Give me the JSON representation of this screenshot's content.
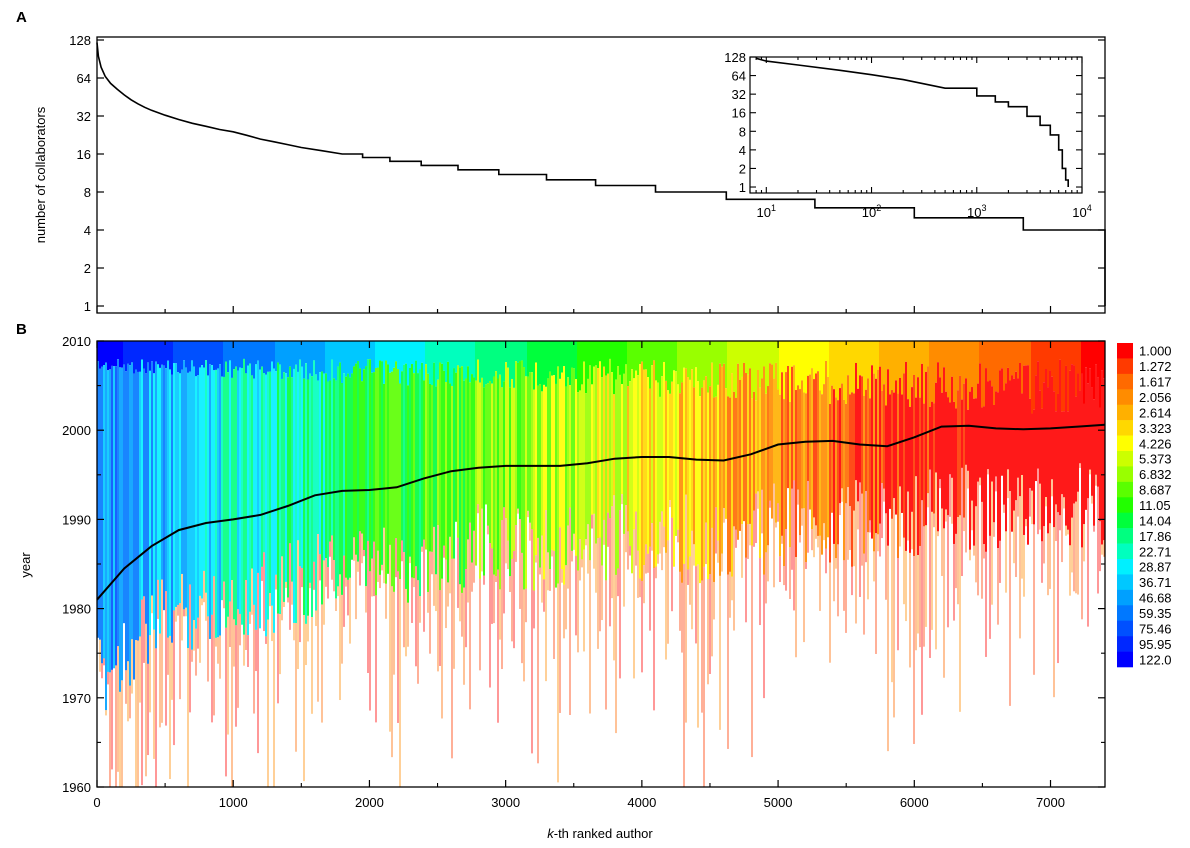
{
  "panel_labels": {
    "a": "A",
    "b": "B"
  },
  "chart_data": [
    {
      "type": "line",
      "panel": "A",
      "ylabel": "number of collaborators",
      "xlabel": "",
      "scale_y": "log2",
      "ylim": [
        1,
        128
      ],
      "xlim": [
        0,
        7400
      ],
      "y_ticks": [
        "1",
        "2",
        "4",
        "8",
        "16",
        "32",
        "64",
        "128"
      ],
      "series": [
        {
          "x": [
            0,
            10,
            30,
            60,
            100,
            150,
            200,
            250,
            300,
            350,
            400,
            500,
            600,
            700,
            800,
            900,
            1000,
            1100,
            1200,
            1300,
            1400,
            1500,
            1650,
            1800,
            1950,
            2150,
            2380,
            2650,
            2950,
            3300,
            3660,
            4100,
            4620,
            5270,
            6000,
            6800,
            7400
          ],
          "y": [
            122,
            95,
            78,
            66,
            58,
            52,
            47,
            43,
            40,
            37.5,
            35.5,
            32.5,
            30,
            28,
            26.5,
            25,
            24,
            22.5,
            21,
            20,
            19,
            18,
            17,
            16,
            15,
            14,
            13,
            12,
            11,
            10,
            9,
            8,
            7,
            6,
            5,
            4,
            1
          ]
        }
      ],
      "inset": {
        "type": "line",
        "scale_x": "log10",
        "scale_y": "log2",
        "xlim": [
          7,
          10000
        ],
        "ylim": [
          0.8,
          128
        ],
        "y_ticks": [
          "1",
          "2",
          "4",
          "8",
          "16",
          "32",
          "64",
          "128"
        ],
        "x_ticks": [
          "10",
          "10",
          "10",
          "10"
        ],
        "x_tick_exponents": [
          "1",
          "2",
          "3",
          "4"
        ],
        "series": [
          {
            "x": [
              8,
              10,
              20,
              50,
              100,
              200,
              500,
              1000,
              1500,
              2000,
              3000,
              4000,
              5000,
              6000,
              6500,
              7000,
              7400
            ],
            "y": [
              122,
              110,
              95,
              78,
              66,
              55,
              40,
              30,
              24,
              20,
              14,
              10,
              7,
              4,
              2,
              1.3,
              1
            ]
          }
        ]
      }
    },
    {
      "type": "heatmap",
      "panel": "B",
      "xlabel_italic": "k",
      "xlabel_rest": "-th ranked author",
      "ylabel": "year",
      "xlim": [
        0,
        7400
      ],
      "ylim": [
        1960,
        2010
      ],
      "x_ticks": [
        "0",
        "1000",
        "2000",
        "3000",
        "4000",
        "5000",
        "6000",
        "7000"
      ],
      "y_ticks": [
        "1960",
        "1970",
        "1980",
        "1990",
        "2000",
        "2010"
      ],
      "colorbar_labels": [
        "1.000",
        "1.272",
        "1.617",
        "2.056",
        "2.614",
        "3.323",
        "4.226",
        "5.373",
        "6.832",
        "8.687",
        "11.05",
        "14.04",
        "17.86",
        "22.71",
        "28.87",
        "36.71",
        "46.68",
        "59.35",
        "75.46",
        "95.95",
        "122.0"
      ],
      "colorbar_colors": [
        "#ff0000",
        "#ff3a00",
        "#ff6a00",
        "#ff8c00",
        "#ffb000",
        "#ffd800",
        "#ffff00",
        "#ccff00",
        "#99ff00",
        "#5aff00",
        "#22ff00",
        "#00ff3c",
        "#00ff80",
        "#00ffbe",
        "#00f0ff",
        "#00c8ff",
        "#00a0ff",
        "#0078ff",
        "#0050ff",
        "#0028ff",
        "#0000ff"
      ],
      "mean_year_curve": {
        "x": [
          0,
          200,
          400,
          600,
          800,
          1000,
          1200,
          1400,
          1600,
          1800,
          2000,
          2200,
          2400,
          2600,
          2800,
          3000,
          3200,
          3400,
          3600,
          3800,
          4000,
          4200,
          4400,
          4600,
          4800,
          5000,
          5200,
          5400,
          5600,
          5800,
          6000,
          6200,
          6400,
          6600,
          6800,
          7000,
          7200,
          7400
        ],
        "y": [
          1981,
          1984.5,
          1987,
          1988.8,
          1989.6,
          1990,
          1990.5,
          1991.5,
          1992.7,
          1993.2,
          1993.3,
          1993.6,
          1994.6,
          1995.4,
          1995.8,
          1996,
          1996,
          1996,
          1996.3,
          1996.8,
          1997,
          1997,
          1996.7,
          1996.6,
          1997.3,
          1998.4,
          1998.7,
          1998.8,
          1998.4,
          1998.2,
          1999.2,
          2000.4,
          2000.5,
          2000.2,
          2000.1,
          2000.2,
          2000.4,
          2000.6
        ]
      }
    }
  ]
}
